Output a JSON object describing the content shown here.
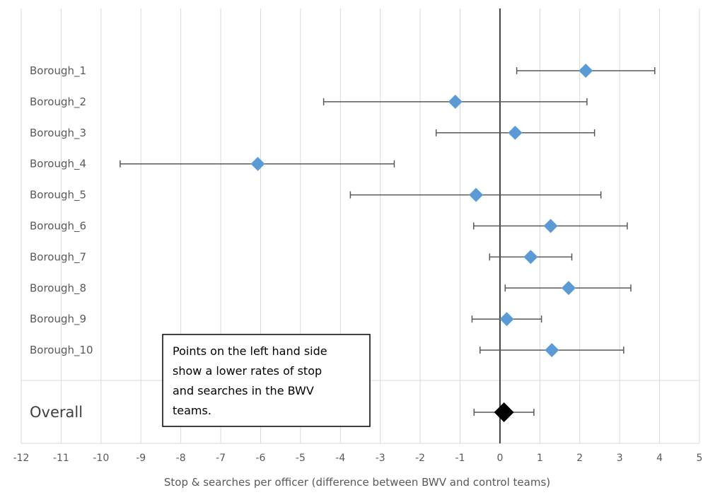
{
  "chart_data": {
    "type": "scatter",
    "subtype": "forest-plot",
    "xlabel": "Stop & searches per officer (difference between BWV and control teams)",
    "xlim": [
      -12,
      5
    ],
    "x_ticks": [
      -12,
      -11,
      -10,
      -9,
      -8,
      -7,
      -6,
      -5,
      -4,
      -3,
      -2,
      -1,
      0,
      1,
      2,
      3,
      4,
      5
    ],
    "grid": "vertical",
    "rows": [
      {
        "label": "Borough_1",
        "estimate": 2.15,
        "lower": 0.42,
        "upper": 3.88
      },
      {
        "label": "Borough_2",
        "estimate": -1.12,
        "lower": -4.42,
        "upper": 2.18
      },
      {
        "label": "Borough_3",
        "estimate": 0.38,
        "lower": -1.6,
        "upper": 2.37
      },
      {
        "label": "Borough_4",
        "estimate": -6.07,
        "lower": -9.52,
        "upper": -2.65
      },
      {
        "label": "Borough_5",
        "estimate": -0.6,
        "lower": -3.75,
        "upper": 2.53
      },
      {
        "label": "Borough_6",
        "estimate": 1.27,
        "lower": -0.66,
        "upper": 3.19
      },
      {
        "label": "Borough_7",
        "estimate": 0.77,
        "lower": -0.26,
        "upper": 1.8
      },
      {
        "label": "Borough_8",
        "estimate": 1.72,
        "lower": 0.13,
        "upper": 3.28
      },
      {
        "label": "Borough_9",
        "estimate": 0.17,
        "lower": -0.7,
        "upper": 1.04
      },
      {
        "label": "Borough_10",
        "estimate": 1.3,
        "lower": -0.5,
        "upper": 3.1
      }
    ],
    "overall": {
      "label": "Overall",
      "estimate": 0.1,
      "lower": -0.65,
      "upper": 0.85
    },
    "reference_line": 0,
    "annotation": [
      "Points on the left hand side",
      "show a lower rates of stop",
      "and searches in the BWV",
      "teams."
    ],
    "colors": {
      "row_marker": "#5B9BD5",
      "overall_marker": "#000000",
      "error_bar": "#595959",
      "gridline": "#D9D9D9",
      "zero_line": "#404040"
    }
  }
}
